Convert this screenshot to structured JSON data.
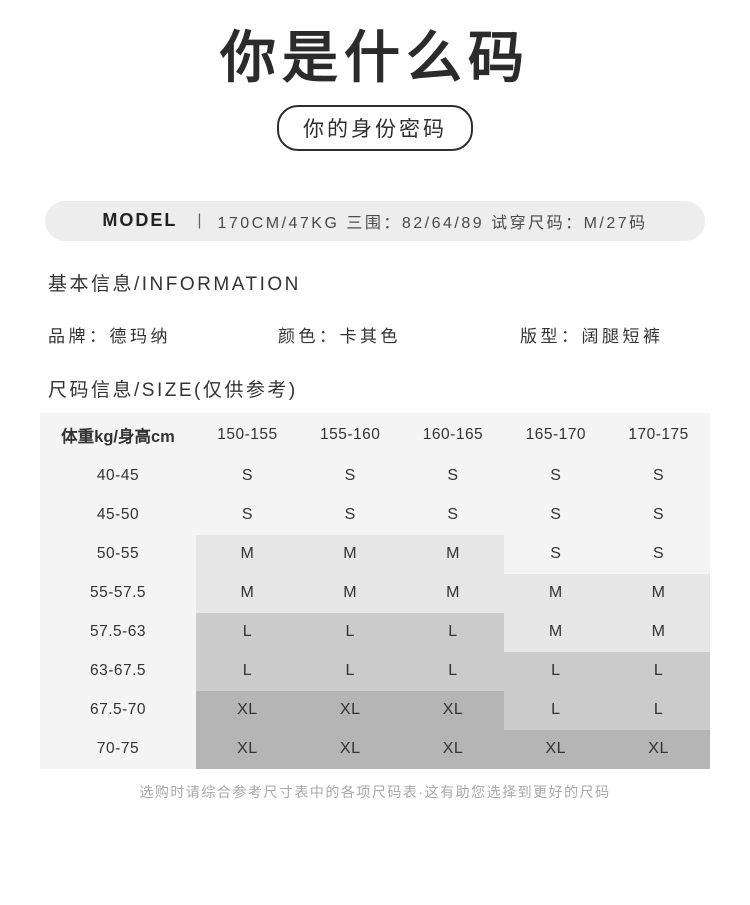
{
  "title": "你是什么码",
  "subtitle": "你的身份密码",
  "model_bar": {
    "label": "MODEL",
    "divider": "|",
    "info": "170CM/47KG 三围：82/64/89 试穿尺码：M/27码"
  },
  "basic_info": {
    "heading": "基本信息/INFORMATION",
    "colon": "：",
    "items": [
      {
        "label": "品牌",
        "value": "德玛纳"
      },
      {
        "label": "颜色",
        "value": "卡其色"
      },
      {
        "label": "版型",
        "value": "阔腿短裤"
      }
    ]
  },
  "size_info": {
    "heading": "尺码信息/SIZE(仅供参考)"
  },
  "size_table": {
    "header": [
      "体重kg/身高cm",
      "150-155",
      "155-160",
      "160-165",
      "165-170",
      "170-175"
    ],
    "rows": [
      {
        "label": "40-45",
        "cells": [
          "S",
          "S",
          "S",
          "S",
          "S"
        ]
      },
      {
        "label": "45-50",
        "cells": [
          "S",
          "S",
          "S",
          "S",
          "S"
        ]
      },
      {
        "label": "50-55",
        "cells": [
          "M",
          "M",
          "M",
          "S",
          "S"
        ]
      },
      {
        "label": "55-57.5",
        "cells": [
          "M",
          "M",
          "M",
          "M",
          "M"
        ]
      },
      {
        "label": "57.5-63",
        "cells": [
          "L",
          "L",
          "L",
          "M",
          "M"
        ]
      },
      {
        "label": "63-67.5",
        "cells": [
          "L",
          "L",
          "L",
          "L",
          "L"
        ]
      },
      {
        "label": "67.5-70",
        "cells": [
          "XL",
          "XL",
          "XL",
          "L",
          "L"
        ]
      },
      {
        "label": "70-75",
        "cells": [
          "XL",
          "XL",
          "XL",
          "XL",
          "XL"
        ]
      }
    ],
    "shade_colors": {
      "S": "#f4f4f4",
      "M": "#e6e6e6",
      "L": "#cbcbcb",
      "XL": "#b5b5b5"
    },
    "base_background": "#f4f4f4"
  },
  "footer_note": "选购时请综合参考尺寸表中的各项尺码表·这有助您选择到更好的尺码"
}
